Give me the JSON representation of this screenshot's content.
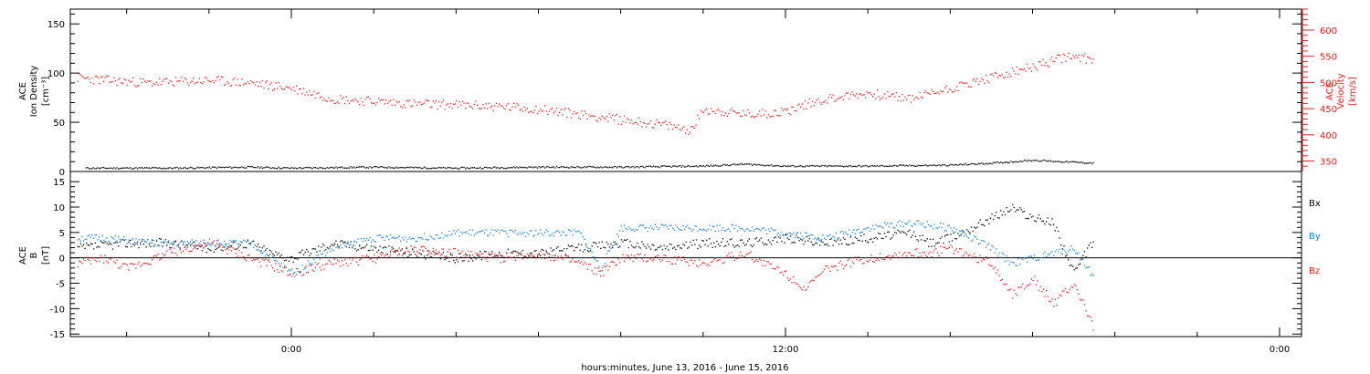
{
  "colors": {
    "black": "#000000",
    "red": "#e0201e",
    "blue": "#1a84d6"
  },
  "xlabel": "hours:minutes, June 13, 2016 - June 15, 2016",
  "x_ticks": [
    "0:00",
    "12:00",
    "0:00"
  ],
  "chart_data": [
    {
      "type": "scatter",
      "panel": "top",
      "ylabel_lines": [
        "ACE",
        "Ion Density",
        "[cm⁻³]"
      ],
      "ylim": [
        0,
        165
      ],
      "yticks": [
        0,
        50,
        100,
        150
      ],
      "y2label_lines": [
        "ACE",
        "Velocity",
        "[km/s]"
      ],
      "y2lim": [
        330,
        640
      ],
      "y2ticks": [
        350,
        400,
        450,
        500,
        550,
        600
      ],
      "series": [
        {
          "color": "black",
          "axis": "left",
          "points": [
            [
              -5,
              4
            ],
            [
              -3,
              4
            ],
            [
              -1,
              5
            ],
            [
              0,
              4
            ],
            [
              2,
              5
            ],
            [
              4,
              4
            ],
            [
              6,
              5
            ],
            [
              8,
              5
            ],
            [
              10,
              6
            ],
            [
              11,
              8
            ],
            [
              12,
              6
            ],
            [
              14,
              6
            ],
            [
              16,
              7
            ],
            [
              17,
              9
            ],
            [
              18,
              12
            ],
            [
              19,
              10
            ],
            [
              19.5,
              9
            ]
          ]
        },
        {
          "color": "red",
          "axis": "right",
          "points": [
            [
              -5.2,
              510
            ],
            [
              -4.5,
              505
            ],
            [
              -3.5,
              500
            ],
            [
              -2,
              505
            ],
            [
              -1,
              500
            ],
            [
              0,
              490
            ],
            [
              1,
              470
            ],
            [
              2,
              465
            ],
            [
              3,
              460
            ],
            [
              4,
              458
            ],
            [
              5,
              455
            ],
            [
              6,
              450
            ],
            [
              7,
              440
            ],
            [
              8,
              430
            ],
            [
              9,
              420
            ],
            [
              9.7,
              410
            ],
            [
              10,
              450
            ],
            [
              11,
              440
            ],
            [
              12,
              445
            ],
            [
              12.5,
              460
            ],
            [
              13,
              470
            ],
            [
              14,
              480
            ],
            [
              15,
              470
            ],
            [
              16,
              490
            ],
            [
              17,
              510
            ],
            [
              18,
              530
            ],
            [
              18.8,
              550
            ],
            [
              19.5,
              545
            ]
          ]
        }
      ]
    },
    {
      "type": "scatter",
      "panel": "bottom",
      "ylabel_lines": [
        "ACE",
        "B",
        "[nT]"
      ],
      "ylim": [
        -15.5,
        17
      ],
      "yticks": [
        -15,
        -10,
        -5,
        0,
        5,
        10,
        15
      ],
      "series": [
        {
          "name": "Bx",
          "color": "black",
          "points": [
            [
              -5.2,
              2
            ],
            [
              -4,
              3
            ],
            [
              -3,
              3
            ],
            [
              -2,
              2
            ],
            [
              -1,
              3
            ],
            [
              -0.5,
              1
            ],
            [
              0,
              0
            ],
            [
              1,
              3
            ],
            [
              2,
              2
            ],
            [
              3,
              1
            ],
            [
              4,
              0
            ],
            [
              5,
              1
            ],
            [
              6,
              1
            ],
            [
              7,
              2
            ],
            [
              8,
              3
            ],
            [
              9,
              2
            ],
            [
              10,
              3
            ],
            [
              11,
              3
            ],
            [
              12,
              4
            ],
            [
              13,
              3
            ],
            [
              14,
              4
            ],
            [
              15,
              5
            ],
            [
              15.5,
              3
            ],
            [
              16,
              4
            ],
            [
              17,
              8
            ],
            [
              17.5,
              10
            ],
            [
              18,
              8
            ],
            [
              18.5,
              7
            ],
            [
              19,
              -3
            ],
            [
              19.5,
              4
            ]
          ]
        },
        {
          "name": "By",
          "color": "blue",
          "points": [
            [
              -5.2,
              4
            ],
            [
              -4.5,
              4
            ],
            [
              -3.5,
              3
            ],
            [
              -2,
              3
            ],
            [
              -1,
              3
            ],
            [
              -0.5,
              0
            ],
            [
              0,
              -3
            ],
            [
              1,
              2
            ],
            [
              2,
              4
            ],
            [
              3,
              4
            ],
            [
              4,
              5
            ],
            [
              5,
              5
            ],
            [
              6,
              5
            ],
            [
              7,
              5
            ],
            [
              7.5,
              -2
            ],
            [
              8,
              6
            ],
            [
              9,
              6
            ],
            [
              10,
              6
            ],
            [
              11,
              6
            ],
            [
              12,
              5
            ],
            [
              13,
              4
            ],
            [
              14,
              6
            ],
            [
              15,
              7
            ],
            [
              16,
              6
            ],
            [
              17,
              2
            ],
            [
              17.5,
              -1
            ],
            [
              18,
              0
            ],
            [
              18.5,
              1
            ],
            [
              19,
              2
            ],
            [
              19.5,
              -4
            ]
          ]
        },
        {
          "name": "Bz",
          "color": "red",
          "points": [
            [
              -5.2,
              -1
            ],
            [
              -4.5,
              0
            ],
            [
              -4,
              -2
            ],
            [
              -3,
              1
            ],
            [
              -2,
              3
            ],
            [
              -1,
              0
            ],
            [
              0,
              -3
            ],
            [
              1,
              -1
            ],
            [
              2,
              0
            ],
            [
              3,
              2
            ],
            [
              4,
              1
            ],
            [
              5,
              0
            ],
            [
              6,
              1
            ],
            [
              7,
              -1
            ],
            [
              7.5,
              -3
            ],
            [
              8,
              0
            ],
            [
              9,
              0
            ],
            [
              10,
              -1
            ],
            [
              11,
              1
            ],
            [
              12,
              -3
            ],
            [
              12.5,
              -6
            ],
            [
              13,
              -2
            ],
            [
              14,
              0
            ],
            [
              15,
              1
            ],
            [
              15.5,
              1
            ],
            [
              16,
              2
            ],
            [
              17,
              -1
            ],
            [
              17.5,
              -7
            ],
            [
              18,
              -4
            ],
            [
              18.5,
              -9
            ],
            [
              19,
              -5
            ],
            [
              19.5,
              -14
            ]
          ]
        }
      ]
    }
  ]
}
